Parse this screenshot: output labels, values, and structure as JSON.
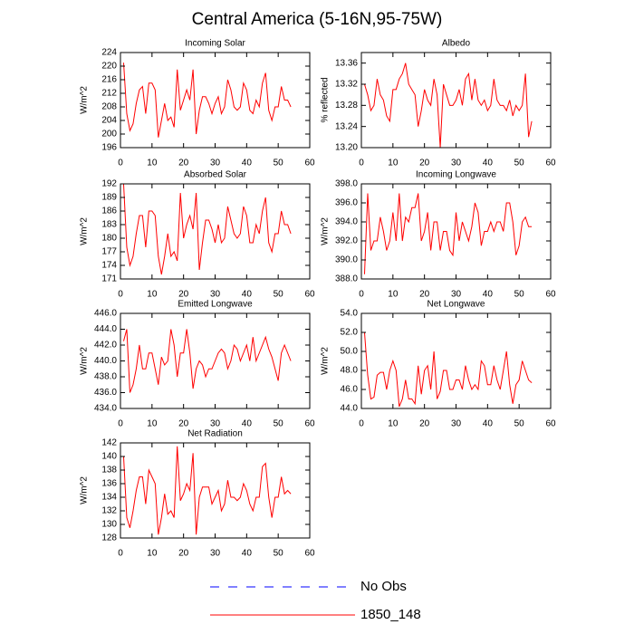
{
  "title": "Central America (5-16N,95-75W)",
  "legend": [
    {
      "name": "No Obs",
      "color": "#0000ff",
      "dash": true
    },
    {
      "name": "1850_148",
      "color": "#ff0000",
      "dash": false
    }
  ],
  "chart_data": [
    {
      "type": "line",
      "title": "Incoming Solar",
      "ylabel": "W/m^2",
      "color": "#ff0000",
      "x": [
        1,
        2,
        3,
        4,
        5,
        6,
        7,
        8,
        9,
        10,
        11,
        12,
        13,
        14,
        15,
        16,
        17,
        18,
        19,
        20,
        21,
        22,
        23,
        24,
        25,
        26,
        27,
        28,
        29,
        30,
        31,
        32,
        33,
        34,
        35,
        36,
        37,
        38,
        39,
        40,
        41,
        42,
        43,
        44,
        45,
        46,
        47,
        48,
        49,
        50,
        51,
        52,
        53,
        54
      ],
      "values": [
        221,
        206,
        201,
        203,
        209,
        213,
        214,
        206,
        215,
        215,
        213,
        199,
        204,
        209,
        204,
        205,
        202,
        219,
        207,
        210,
        213,
        210,
        219,
        200,
        207,
        211,
        211,
        209,
        206,
        209,
        211,
        206,
        208,
        216,
        213,
        208,
        207,
        208,
        215,
        213,
        207,
        206,
        210,
        208,
        215,
        218,
        207,
        204,
        208,
        208,
        214,
        210,
        210,
        208
      ],
      "xlim": [
        0,
        60
      ],
      "xticks": [
        0,
        10,
        20,
        30,
        40,
        50,
        60
      ],
      "ylim": [
        196,
        224
      ],
      "yticks": [
        196,
        200,
        204,
        208,
        212,
        216,
        220,
        224
      ]
    },
    {
      "type": "line",
      "title": "Albedo",
      "ylabel": "% reflected",
      "color": "#ff0000",
      "x": [
        1,
        2,
        3,
        4,
        5,
        6,
        7,
        8,
        9,
        10,
        11,
        12,
        13,
        14,
        15,
        16,
        17,
        18,
        19,
        20,
        21,
        22,
        23,
        24,
        25,
        26,
        27,
        28,
        29,
        30,
        31,
        32,
        33,
        34,
        35,
        36,
        37,
        38,
        39,
        40,
        41,
        42,
        43,
        44,
        45,
        46,
        47,
        48,
        49,
        50,
        51,
        52,
        53,
        54
      ],
      "values": [
        13.32,
        13.3,
        13.27,
        13.28,
        13.33,
        13.3,
        13.29,
        13.26,
        13.25,
        13.31,
        13.31,
        13.33,
        13.34,
        13.36,
        13.32,
        13.31,
        13.3,
        13.24,
        13.27,
        13.31,
        13.29,
        13.28,
        13.33,
        13.3,
        13.2,
        13.32,
        13.3,
        13.28,
        13.28,
        13.29,
        13.31,
        13.28,
        13.33,
        13.34,
        13.29,
        13.33,
        13.29,
        13.28,
        13.29,
        13.27,
        13.28,
        13.33,
        13.29,
        13.28,
        13.28,
        13.27,
        13.29,
        13.26,
        13.28,
        13.27,
        13.28,
        13.34,
        13.22,
        13.25
      ],
      "xlim": [
        0,
        60
      ],
      "xticks": [
        0,
        10,
        20,
        30,
        40,
        50,
        60
      ],
      "ylim": [
        13.2,
        13.38
      ],
      "yticks": [
        {
          "value": 13.2,
          "label": "13.20"
        },
        13.24,
        13.28,
        13.32,
        13.36
      ]
    },
    {
      "type": "line",
      "title": "Absorbed Solar",
      "ylabel": "W/m^2",
      "color": "#ff0000",
      "x": [
        1,
        2,
        3,
        4,
        5,
        6,
        7,
        8,
        9,
        10,
        11,
        12,
        13,
        14,
        15,
        16,
        17,
        18,
        19,
        20,
        21,
        22,
        23,
        24,
        25,
        26,
        27,
        28,
        29,
        30,
        31,
        32,
        33,
        34,
        35,
        36,
        37,
        38,
        39,
        40,
        41,
        42,
        43,
        44,
        45,
        46,
        47,
        48,
        49,
        50,
        51,
        52,
        53,
        54
      ],
      "values": [
        192,
        178,
        174,
        176,
        181,
        185,
        185,
        178,
        186,
        186,
        185,
        176,
        172,
        176,
        181,
        176,
        177,
        175,
        190,
        180,
        183,
        185,
        182,
        190,
        173,
        179,
        184,
        184,
        182,
        179,
        183,
        179,
        180,
        187,
        184,
        181,
        180,
        181,
        187,
        185,
        179,
        179,
        183,
        181,
        186,
        189,
        179,
        177,
        181,
        181,
        186,
        183,
        183,
        181
      ],
      "xlim": [
        0,
        60
      ],
      "xticks": [
        0,
        10,
        20,
        30,
        40,
        50,
        60
      ],
      "ylim": [
        171,
        192
      ],
      "yticks": [
        171,
        174,
        177,
        180,
        183,
        186,
        189,
        192
      ]
    },
    {
      "type": "line",
      "title": "Incoming Longwave",
      "ylabel": "W/m^2",
      "color": "#ff0000",
      "x": [
        1,
        2,
        3,
        4,
        5,
        6,
        7,
        8,
        9,
        10,
        11,
        12,
        13,
        14,
        15,
        16,
        17,
        18,
        19,
        20,
        21,
        22,
        23,
        24,
        25,
        26,
        27,
        28,
        29,
        30,
        31,
        32,
        33,
        34,
        35,
        36,
        37,
        38,
        39,
        40,
        41,
        42,
        43,
        44,
        45,
        46,
        47,
        48,
        49,
        50,
        51,
        52,
        53,
        54
      ],
      "values": [
        388.5,
        397,
        391,
        392,
        392,
        394.5,
        393,
        391,
        392,
        395,
        392,
        397,
        392,
        394.5,
        394,
        395.5,
        395.5,
        397,
        392,
        393,
        395,
        391,
        394,
        394,
        391,
        393,
        393,
        391,
        390.5,
        395,
        392,
        394,
        393,
        392,
        393.5,
        396,
        395,
        391.5,
        393,
        393,
        394,
        393,
        394,
        394,
        393,
        396,
        396,
        394,
        390.5,
        391.5,
        394,
        394.5,
        393.5,
        393.5
      ],
      "xlim": [
        0,
        60
      ],
      "xticks": [
        0,
        10,
        20,
        30,
        40,
        50,
        60
      ],
      "ylim": [
        388,
        398
      ],
      "yticks": [
        {
          "value": 388,
          "label": "388.0"
        },
        {
          "value": 390,
          "label": "390.0"
        },
        {
          "value": 392,
          "label": "392.0"
        },
        {
          "value": 394,
          "label": "394.0"
        },
        {
          "value": 396,
          "label": "396.0"
        },
        {
          "value": 398,
          "label": "398.0"
        }
      ]
    },
    {
      "type": "line",
      "title": "Emitted Longwave",
      "ylabel": "W/m^2",
      "color": "#ff0000",
      "x": [
        1,
        2,
        3,
        4,
        5,
        6,
        7,
        8,
        9,
        10,
        11,
        12,
        13,
        14,
        15,
        16,
        17,
        18,
        19,
        20,
        21,
        22,
        23,
        24,
        25,
        26,
        27,
        28,
        29,
        30,
        31,
        32,
        33,
        34,
        35,
        36,
        37,
        38,
        39,
        40,
        41,
        42,
        43,
        44,
        45,
        46,
        47,
        48,
        49,
        50,
        51,
        52,
        53,
        54
      ],
      "values": [
        442.5,
        444,
        436,
        437,
        439,
        442,
        439,
        439,
        441,
        441,
        439,
        437,
        440.5,
        439.5,
        440,
        444,
        442,
        438,
        441,
        441,
        444,
        441,
        436.5,
        439,
        440,
        439.5,
        438,
        439,
        439,
        440,
        441,
        441.5,
        441,
        439,
        440,
        442,
        441.5,
        440,
        441,
        442,
        440,
        443,
        440,
        441,
        442,
        443,
        441.5,
        440.5,
        439,
        437.5,
        441,
        442,
        441,
        440
      ],
      "xlim": [
        0,
        60
      ],
      "xticks": [
        0,
        10,
        20,
        30,
        40,
        50,
        60
      ],
      "ylim": [
        434,
        446
      ],
      "yticks": [
        {
          "value": 434,
          "label": "434.0"
        },
        {
          "value": 436,
          "label": "436.0"
        },
        {
          "value": 438,
          "label": "438.0"
        },
        {
          "value": 440,
          "label": "440.0"
        },
        {
          "value": 442,
          "label": "442.0"
        },
        {
          "value": 444,
          "label": "444.0"
        },
        {
          "value": 446,
          "label": "446.0"
        }
      ]
    },
    {
      "type": "line",
      "title": "Net Longwave",
      "ylabel": "W/m^2",
      "color": "#ff0000",
      "x": [
        1,
        2,
        3,
        4,
        5,
        6,
        7,
        8,
        9,
        10,
        11,
        12,
        13,
        14,
        15,
        16,
        17,
        18,
        19,
        20,
        21,
        22,
        23,
        24,
        25,
        26,
        27,
        28,
        29,
        30,
        31,
        32,
        33,
        34,
        35,
        36,
        37,
        38,
        39,
        40,
        41,
        42,
        43,
        44,
        45,
        46,
        47,
        48,
        49,
        50,
        51,
        52,
        53,
        54
      ],
      "values": [
        52,
        47.5,
        45,
        45.2,
        47.5,
        47.8,
        47.8,
        46,
        48,
        49,
        48,
        44.2,
        45,
        47,
        45,
        45,
        44.5,
        48.5,
        45.5,
        48,
        48.5,
        46,
        50,
        45,
        45.8,
        48,
        48,
        46,
        46,
        47,
        47,
        46,
        48.5,
        47,
        46,
        46.5,
        46,
        49,
        48.5,
        46.5,
        46.5,
        48.5,
        47,
        46,
        48,
        50,
        46.5,
        44.5,
        46.5,
        47,
        49,
        48,
        47,
        46.7
      ],
      "xlim": [
        0,
        60
      ],
      "xticks": [
        0,
        10,
        20,
        30,
        40,
        50,
        60
      ],
      "ylim": [
        44,
        54
      ],
      "yticks": [
        {
          "value": 44,
          "label": "44.0"
        },
        {
          "value": 46,
          "label": "46.0"
        },
        {
          "value": 48,
          "label": "48.0"
        },
        {
          "value": 50,
          "label": "50.0"
        },
        {
          "value": 52,
          "label": "52.0"
        },
        {
          "value": 54,
          "label": "54.0"
        }
      ]
    },
    {
      "type": "line",
      "title": "Net Radiation",
      "ylabel": "W/m^2",
      "color": "#ff0000",
      "x": [
        1,
        2,
        3,
        4,
        5,
        6,
        7,
        8,
        9,
        10,
        11,
        12,
        13,
        14,
        15,
        16,
        17,
        18,
        19,
        20,
        21,
        22,
        23,
        24,
        25,
        26,
        27,
        28,
        29,
        30,
        31,
        32,
        33,
        34,
        35,
        36,
        37,
        38,
        39,
        40,
        41,
        42,
        43,
        44,
        45,
        46,
        47,
        48,
        49,
        50,
        51,
        52,
        53,
        54
      ],
      "values": [
        140,
        131,
        129.5,
        132,
        135,
        137,
        137,
        133,
        138,
        137,
        136,
        128.5,
        131,
        134.5,
        131.5,
        132,
        131,
        141.5,
        133.5,
        134.5,
        136,
        135,
        140.5,
        128.5,
        134,
        135.5,
        135.5,
        135.5,
        133,
        134,
        135,
        132,
        133,
        136.5,
        134,
        134,
        133.5,
        134,
        136,
        135,
        133,
        132,
        134,
        134,
        138.5,
        139,
        134,
        131,
        134,
        134,
        137,
        134.5,
        135,
        134.5
      ],
      "xlim": [
        0,
        60
      ],
      "xticks": [
        0,
        10,
        20,
        30,
        40,
        50,
        60
      ],
      "ylim": [
        128,
        142
      ],
      "yticks": [
        128,
        130,
        132,
        134,
        136,
        138,
        140,
        142
      ]
    }
  ]
}
